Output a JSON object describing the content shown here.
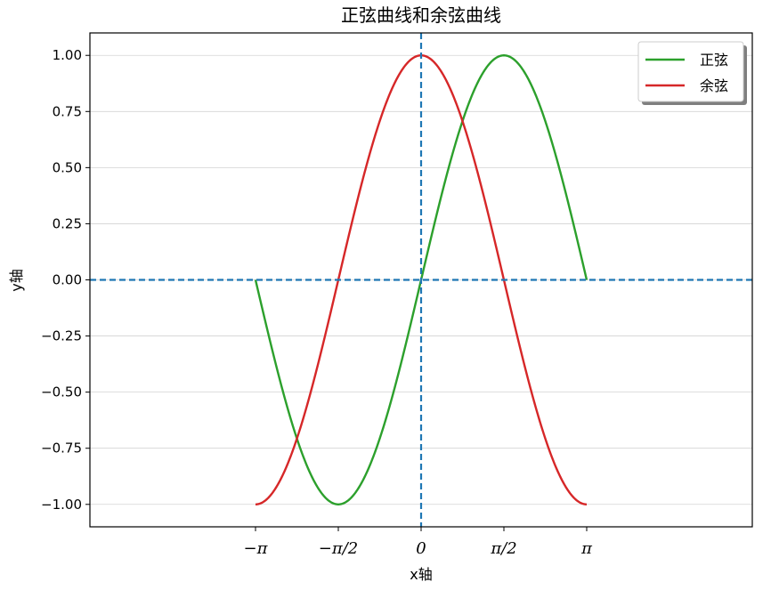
{
  "chart_data": {
    "type": "line",
    "title": "正弦曲线和余弦曲线",
    "xlabel": "x轴",
    "ylabel": "y轴",
    "xlim": [
      -6.2832,
      6.2832
    ],
    "ylim": [
      -1.1,
      1.1
    ],
    "x_ticks": [
      {
        "value": -3.14159,
        "label": "−π"
      },
      {
        "value": -1.5708,
        "label": "−π/2"
      },
      {
        "value": 0,
        "label": "0"
      },
      {
        "value": 1.5708,
        "label": "π/2"
      },
      {
        "value": 3.14159,
        "label": "π"
      }
    ],
    "y_ticks": [
      {
        "value": 1.0,
        "label": "1.00"
      },
      {
        "value": 0.75,
        "label": "0.75"
      },
      {
        "value": 0.5,
        "label": "0.50"
      },
      {
        "value": 0.25,
        "label": "0.25"
      },
      {
        "value": 0.0,
        "label": "0.00"
      },
      {
        "value": -0.25,
        "label": "−0.25"
      },
      {
        "value": -0.5,
        "label": "−0.50"
      },
      {
        "value": -0.75,
        "label": "−0.75"
      },
      {
        "value": -1.0,
        "label": "−1.00"
      }
    ],
    "grid": "horizontal",
    "reference_lines": [
      {
        "orientation": "horizontal",
        "value": 0,
        "style": "dashed",
        "color": "#1f77b4"
      },
      {
        "orientation": "vertical",
        "value": 0,
        "style": "dashed",
        "color": "#1f77b4"
      }
    ],
    "series": [
      {
        "name": "正弦",
        "function": "sin",
        "color": "#2ca02c",
        "x": [
          -3.1416,
          -2.3562,
          -1.5708,
          -0.7854,
          0,
          0.7854,
          1.5708,
          2.3562,
          3.1416
        ],
        "y": [
          0,
          -0.707,
          -1,
          -0.707,
          0,
          0.707,
          1,
          0.707,
          0
        ]
      },
      {
        "name": "余弦",
        "function": "cos",
        "color": "#d62728",
        "x": [
          -3.1416,
          -2.3562,
          -1.5708,
          -0.7854,
          0,
          0.7854,
          1.5708,
          2.3562,
          3.1416
        ],
        "y": [
          -1,
          -0.707,
          0,
          0.707,
          1,
          0.707,
          0,
          -0.707,
          -1
        ]
      }
    ],
    "legend": {
      "placement": "upper right",
      "shadow": true
    }
  }
}
